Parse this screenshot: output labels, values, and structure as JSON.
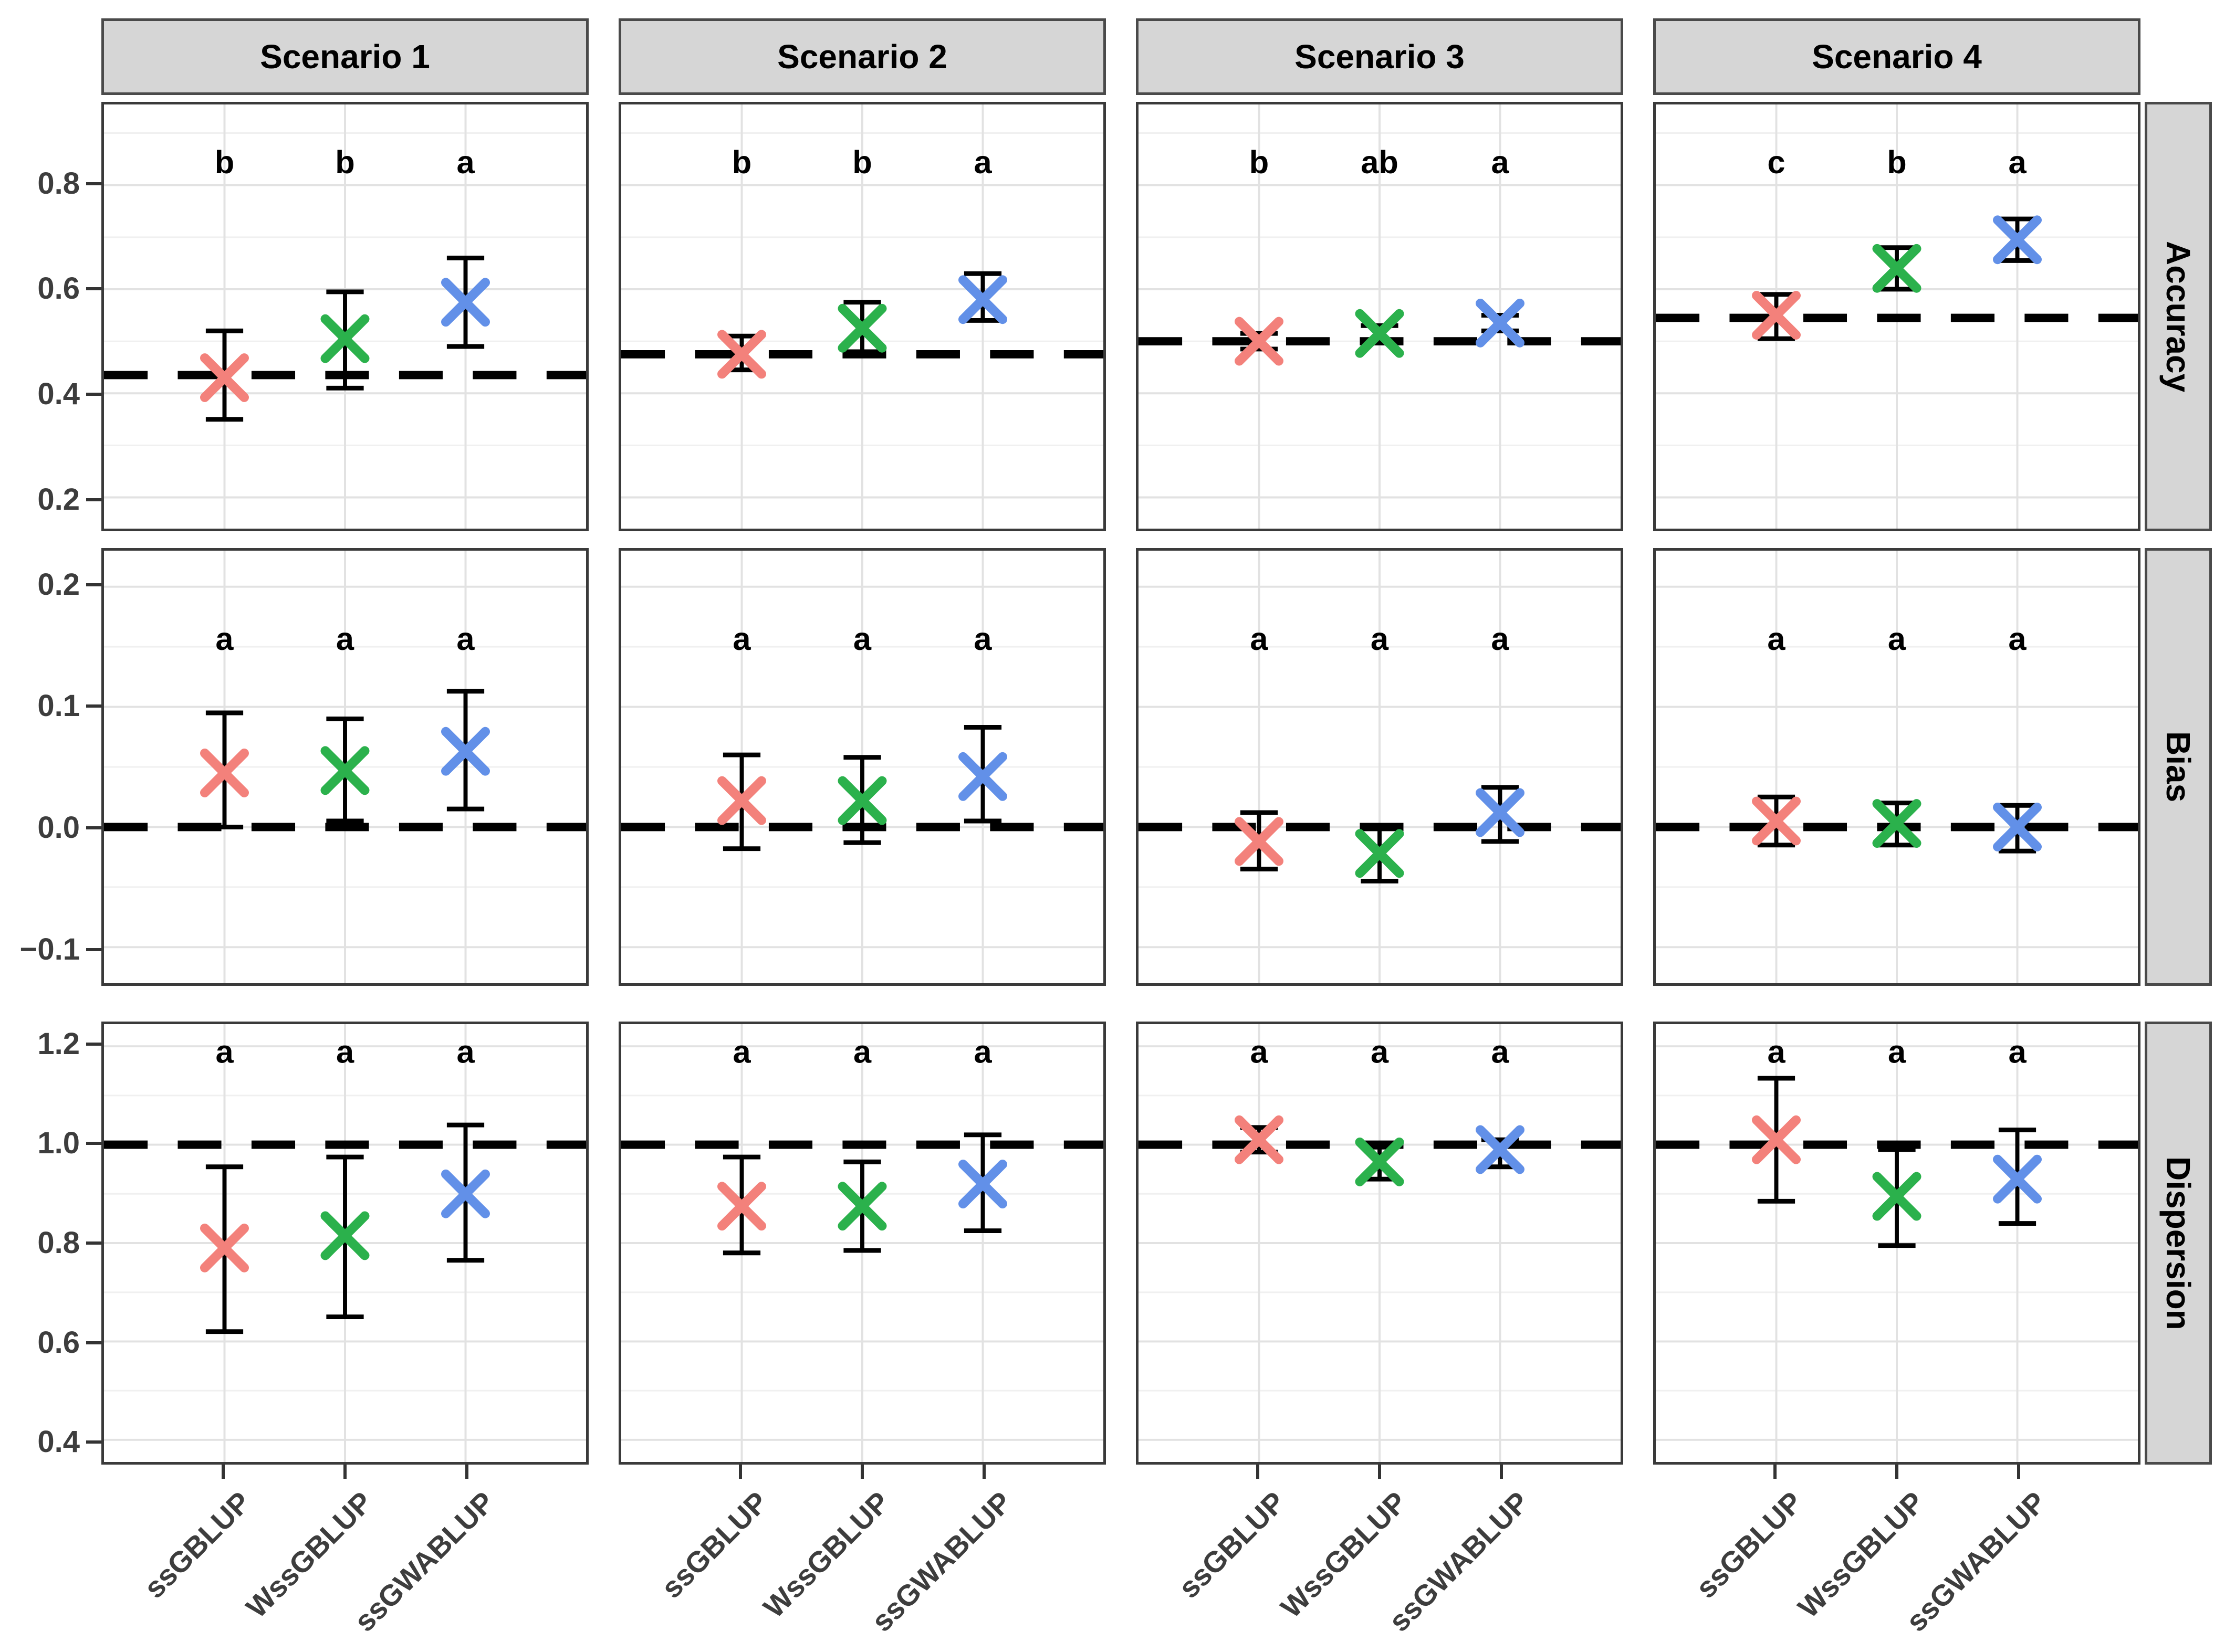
{
  "figure": {
    "background": "#FFFFFF",
    "strip_bg": "#D6D6D6",
    "strip_border_color": "#4A4A4A",
    "panel_border_color": "#3A3A3A",
    "grid_major_color": "#E2E2E2",
    "grid_minor_color": "#F0F0F0",
    "axis_text_color": "#3D3D3D",
    "errorbar_color": "#000000",
    "reference_line_color": "#000000",
    "letter_color": "#000000"
  },
  "methods": [
    {
      "name": "ssGBLUP",
      "color": "#F3817B"
    },
    {
      "name": "WssGBLUP",
      "color": "#2BB14C"
    },
    {
      "name": "ssGWABLUP",
      "color": "#6290E8"
    }
  ],
  "chart_data": {
    "type": "scatter",
    "subtype": "point-with-errorbar, faceted grid (4 scenario columns x 3 metric rows)",
    "marker": "x",
    "facet_columns": [
      "Scenario 1",
      "Scenario 2",
      "Scenario 3",
      "Scenario 4"
    ],
    "facet_rows": [
      "Accuracy",
      "Bias",
      "Dispersion"
    ],
    "x_categories": [
      "ssGBLUP",
      "WssGBLUP",
      "ssGWABLUP"
    ],
    "grid": "on",
    "legend": "none",
    "rows": [
      {
        "label": "Accuracy",
        "ylim": [
          0.14,
          0.955
        ],
        "major_ticks": [
          0.2,
          0.4,
          0.6,
          0.8
        ],
        "minor_ticks": [
          0.3,
          0.5,
          0.7,
          0.9
        ],
        "letter_y": 0.845,
        "panels": [
          {
            "scenario": "Scenario 1",
            "reference_line": 0.435,
            "points": [
              {
                "method": "ssGBLUP",
                "mean": 0.43,
                "lower": 0.35,
                "upper": 0.52,
                "letter": "b"
              },
              {
                "method": "WssGBLUP",
                "mean": 0.505,
                "lower": 0.41,
                "upper": 0.595,
                "letter": "b"
              },
              {
                "method": "ssGWABLUP",
                "mean": 0.575,
                "lower": 0.49,
                "upper": 0.66,
                "letter": "a"
              }
            ]
          },
          {
            "scenario": "Scenario 2",
            "reference_line": 0.475,
            "points": [
              {
                "method": "ssGBLUP",
                "mean": 0.475,
                "lower": 0.445,
                "upper": 0.51,
                "letter": "b"
              },
              {
                "method": "WssGBLUP",
                "mean": 0.525,
                "lower": 0.48,
                "upper": 0.575,
                "letter": "b"
              },
              {
                "method": "ssGWABLUP",
                "mean": 0.58,
                "lower": 0.54,
                "upper": 0.63,
                "letter": "a"
              }
            ]
          },
          {
            "scenario": "Scenario 3",
            "reference_line": 0.5,
            "points": [
              {
                "method": "ssGBLUP",
                "mean": 0.5,
                "lower": 0.485,
                "upper": 0.515,
                "letter": "b"
              },
              {
                "method": "WssGBLUP",
                "mean": 0.515,
                "lower": 0.5,
                "upper": 0.53,
                "letter": "ab"
              },
              {
                "method": "ssGWABLUP",
                "mean": 0.535,
                "lower": 0.52,
                "upper": 0.55,
                "letter": "a"
              }
            ]
          },
          {
            "scenario": "Scenario 4",
            "reference_line": 0.545,
            "points": [
              {
                "method": "ssGBLUP",
                "mean": 0.55,
                "lower": 0.505,
                "upper": 0.59,
                "letter": "c"
              },
              {
                "method": "WssGBLUP",
                "mean": 0.64,
                "lower": 0.6,
                "upper": 0.68,
                "letter": "b"
              },
              {
                "method": "ssGWABLUP",
                "mean": 0.695,
                "lower": 0.655,
                "upper": 0.735,
                "letter": "a"
              }
            ]
          }
        ]
      },
      {
        "label": "Bias",
        "ylim": [
          -0.13,
          0.23
        ],
        "major_ticks": [
          -0.1,
          0.0,
          0.1,
          0.2
        ],
        "minor_ticks": [
          -0.05,
          0.05,
          0.15
        ],
        "letter_y": 0.157,
        "panels": [
          {
            "scenario": "Scenario 1",
            "reference_line": 0.0,
            "points": [
              {
                "method": "ssGBLUP",
                "mean": 0.045,
                "lower": 0.0,
                "upper": 0.095,
                "letter": "a"
              },
              {
                "method": "WssGBLUP",
                "mean": 0.047,
                "lower": 0.005,
                "upper": 0.09,
                "letter": "a"
              },
              {
                "method": "ssGWABLUP",
                "mean": 0.063,
                "lower": 0.015,
                "upper": 0.113,
                "letter": "a"
              }
            ]
          },
          {
            "scenario": "Scenario 2",
            "reference_line": 0.0,
            "points": [
              {
                "method": "ssGBLUP",
                "mean": 0.022,
                "lower": -0.018,
                "upper": 0.06,
                "letter": "a"
              },
              {
                "method": "WssGBLUP",
                "mean": 0.022,
                "lower": -0.013,
                "upper": 0.058,
                "letter": "a"
              },
              {
                "method": "ssGWABLUP",
                "mean": 0.042,
                "lower": 0.005,
                "upper": 0.083,
                "letter": "a"
              }
            ]
          },
          {
            "scenario": "Scenario 3",
            "reference_line": 0.0,
            "points": [
              {
                "method": "ssGBLUP",
                "mean": -0.012,
                "lower": -0.035,
                "upper": 0.012,
                "letter": "a"
              },
              {
                "method": "WssGBLUP",
                "mean": -0.022,
                "lower": -0.045,
                "upper": 0.0,
                "letter": "a"
              },
              {
                "method": "ssGWABLUP",
                "mean": 0.012,
                "lower": -0.012,
                "upper": 0.033,
                "letter": "a"
              }
            ]
          },
          {
            "scenario": "Scenario 4",
            "reference_line": 0.0,
            "points": [
              {
                "method": "ssGBLUP",
                "mean": 0.005,
                "lower": -0.015,
                "upper": 0.025,
                "letter": "a"
              },
              {
                "method": "WssGBLUP",
                "mean": 0.003,
                "lower": -0.015,
                "upper": 0.02,
                "letter": "a"
              },
              {
                "method": "ssGWABLUP",
                "mean": 0.0,
                "lower": -0.02,
                "upper": 0.018,
                "letter": "a"
              }
            ]
          }
        ]
      },
      {
        "label": "Dispersion",
        "ylim": [
          0.355,
          1.245
        ],
        "major_ticks": [
          0.4,
          0.6,
          0.8,
          1.0,
          1.2
        ],
        "minor_ticks": [
          0.5,
          0.7,
          0.9,
          1.1
        ],
        "letter_y": 1.19,
        "panels": [
          {
            "scenario": "Scenario 1",
            "reference_line": 1.0,
            "points": [
              {
                "method": "ssGBLUP",
                "mean": 0.79,
                "lower": 0.62,
                "upper": 0.955,
                "letter": "a"
              },
              {
                "method": "WssGBLUP",
                "mean": 0.815,
                "lower": 0.65,
                "upper": 0.975,
                "letter": "a"
              },
              {
                "method": "ssGWABLUP",
                "mean": 0.9,
                "lower": 0.765,
                "upper": 1.04,
                "letter": "a"
              }
            ]
          },
          {
            "scenario": "Scenario 2",
            "reference_line": 1.0,
            "points": [
              {
                "method": "ssGBLUP",
                "mean": 0.875,
                "lower": 0.78,
                "upper": 0.975,
                "letter": "a"
              },
              {
                "method": "WssGBLUP",
                "mean": 0.875,
                "lower": 0.785,
                "upper": 0.965,
                "letter": "a"
              },
              {
                "method": "ssGWABLUP",
                "mean": 0.92,
                "lower": 0.825,
                "upper": 1.02,
                "letter": "a"
              }
            ]
          },
          {
            "scenario": "Scenario 3",
            "reference_line": 1.0,
            "points": [
              {
                "method": "ssGBLUP",
                "mean": 1.01,
                "lower": 0.985,
                "upper": 1.035,
                "letter": "a"
              },
              {
                "method": "WssGBLUP",
                "mean": 0.965,
                "lower": 0.93,
                "upper": 0.995,
                "letter": "a"
              },
              {
                "method": "ssGWABLUP",
                "mean": 0.99,
                "lower": 0.955,
                "upper": 1.01,
                "letter": "a"
              }
            ]
          },
          {
            "scenario": "Scenario 4",
            "reference_line": 1.0,
            "points": [
              {
                "method": "ssGBLUP",
                "mean": 1.01,
                "lower": 0.885,
                "upper": 1.135,
                "letter": "a"
              },
              {
                "method": "WssGBLUP",
                "mean": 0.895,
                "lower": 0.795,
                "upper": 0.99,
                "letter": "a"
              },
              {
                "method": "ssGWABLUP",
                "mean": 0.93,
                "lower": 0.84,
                "upper": 1.03,
                "letter": "a"
              }
            ]
          }
        ]
      }
    ]
  }
}
